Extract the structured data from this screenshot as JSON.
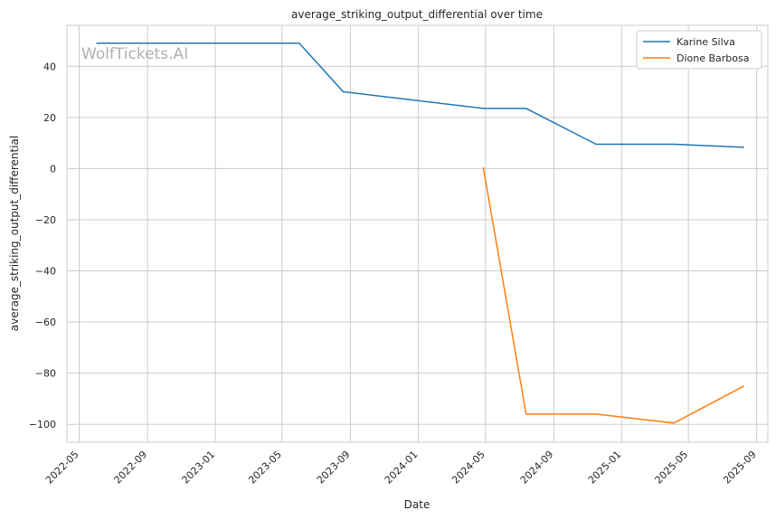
{
  "chart_data": {
    "type": "line",
    "title": "average_striking_output_differential over time",
    "xlabel": "Date",
    "ylabel": "average_striking_output_differential",
    "watermark": "WolfTickets.AI",
    "xlim": [
      "2022-04-09",
      "2025-09-21"
    ],
    "ylim": [
      -107,
      56
    ],
    "x_ticks": [
      "2022-05",
      "2022-09",
      "2023-01",
      "2023-05",
      "2023-09",
      "2024-01",
      "2024-05",
      "2024-09",
      "2025-01",
      "2025-05",
      "2025-09"
    ],
    "y_ticks": [
      40,
      20,
      0,
      -20,
      -40,
      -60,
      -80,
      -100
    ],
    "grid": true,
    "legend_position": "top-right",
    "series": [
      {
        "name": "Karine Silva",
        "color": "#1f77b4",
        "points": [
          {
            "x": "2022-06-01",
            "y": 49
          },
          {
            "x": "2023-06-01",
            "y": 49
          },
          {
            "x": "2023-08-19",
            "y": 30
          },
          {
            "x": "2024-04-27",
            "y": 23.5
          },
          {
            "x": "2024-07-13",
            "y": 23.5
          },
          {
            "x": "2024-11-16",
            "y": 9.5
          },
          {
            "x": "2025-04-05",
            "y": 9.5
          },
          {
            "x": "2025-08-09",
            "y": 8.3
          }
        ]
      },
      {
        "name": "Dione Barbosa",
        "color": "#ff7f0e",
        "points": [
          {
            "x": "2024-04-27",
            "y": 0.5
          },
          {
            "x": "2024-07-13",
            "y": -96
          },
          {
            "x": "2024-11-16",
            "y": -96
          },
          {
            "x": "2025-04-05",
            "y": -99.5
          },
          {
            "x": "2025-08-09",
            "y": -85
          }
        ]
      }
    ]
  }
}
